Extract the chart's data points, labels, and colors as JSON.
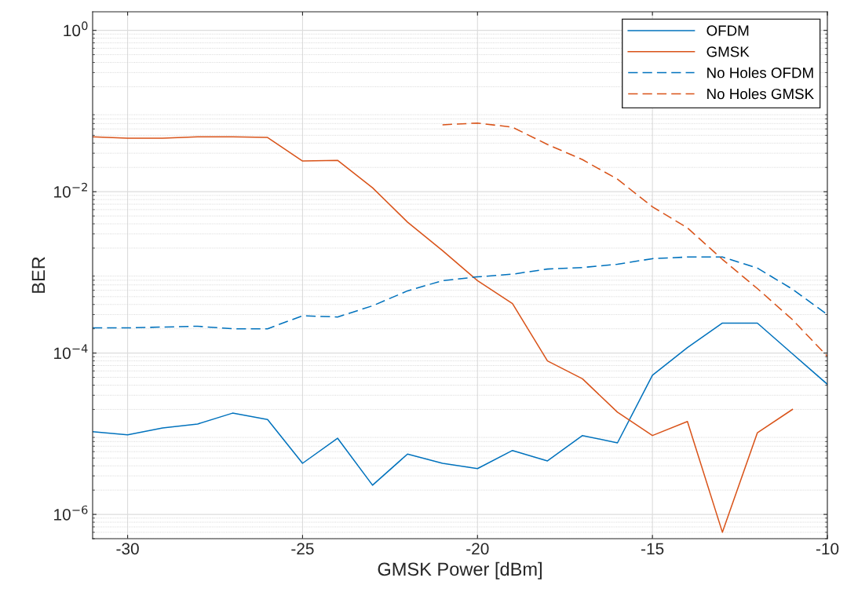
{
  "chart_data": {
    "type": "line",
    "xlabel": "GMSK Power [dBm]",
    "ylabel": "BER",
    "x": [
      -31,
      -30,
      -29,
      -28,
      -27,
      -26,
      -25,
      -24,
      -23,
      -22,
      -21,
      -20,
      -19,
      -18,
      -17,
      -16,
      -15,
      -14,
      -13,
      -12,
      -11,
      -10
    ],
    "series": [
      {
        "name": "OFDM",
        "color": "#0072bd",
        "line_style": "solid",
        "values": [
          1.06e-05,
          9.7e-06,
          1.18e-05,
          1.32e-05,
          1.8e-05,
          1.5e-05,
          4.3e-06,
          8.8e-06,
          2.3e-06,
          5.6e-06,
          4.3e-06,
          3.7e-06,
          6.2e-06,
          4.6e-06,
          9.5e-06,
          7.7e-06,
          5.3e-05,
          0.000117,
          0.000235,
          0.000235,
          9.8e-05,
          4.1e-05
        ]
      },
      {
        "name": "GMSK",
        "color": "#d95319",
        "line_style": "solid",
        "values": [
          0.048,
          0.046,
          0.046,
          0.048,
          0.048,
          0.047,
          0.024,
          0.0245,
          0.0112,
          0.0042,
          0.00186,
          0.00079,
          0.00041,
          8e-05,
          4.8e-05,
          1.85e-05,
          9.5e-06,
          1.42e-05,
          6e-07,
          1.03e-05,
          2e-05,
          null
        ]
      },
      {
        "name": "No Holes OFDM",
        "color": "#0072bd",
        "line_style": "dashed",
        "values": [
          0.000205,
          0.000205,
          0.00021,
          0.000215,
          0.0002,
          0.0002,
          0.00029,
          0.00028,
          0.000385,
          0.00059,
          0.00079,
          0.00088,
          0.00095,
          0.0011,
          0.00115,
          0.00126,
          0.00148,
          0.00155,
          0.00155,
          0.00113,
          0.00062,
          0.0003
        ]
      },
      {
        "name": "No Holes GMSK",
        "color": "#d95319",
        "line_style": "dashed",
        "values": [
          null,
          null,
          null,
          null,
          null,
          null,
          null,
          null,
          null,
          null,
          0.0675,
          0.071,
          0.063,
          0.0385,
          0.025,
          0.0143,
          0.0065,
          0.00356,
          0.00145,
          0.00063,
          0.00026,
          9.1e-05
        ]
      }
    ],
    "log": "y",
    "xlim": [
      -31,
      -10
    ],
    "xticks": [
      -30,
      -25,
      -20,
      -15,
      -10
    ],
    "ylim": [
      5e-07,
      1.7
    ],
    "yticks": [
      {
        "value": 1,
        "label": "10$^{0}$"
      },
      {
        "value": 0.01,
        "label": "10$^{−2}$"
      },
      {
        "value": 0.0001,
        "label": "10$^{−4}$"
      },
      {
        "value": 1e-06,
        "label": "10$^{−6}$"
      }
    ],
    "grid": true,
    "legend": "top right",
    "marker": "none"
  }
}
